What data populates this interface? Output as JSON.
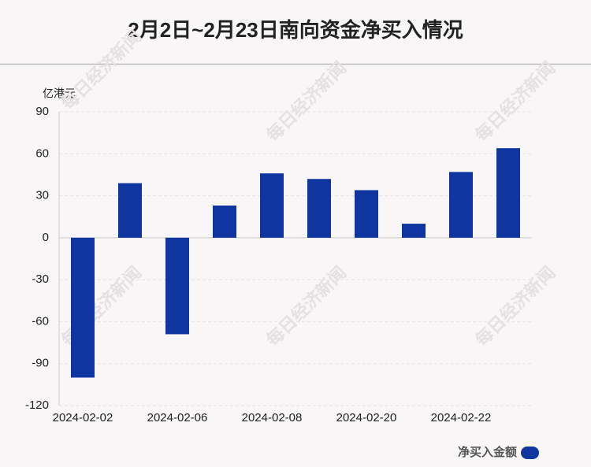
{
  "chart_data": {
    "type": "bar",
    "title": "2月2日~2月23日南向资金净买入情况",
    "y_label": "亿港元",
    "categories": [
      "2024-02-02",
      null,
      "2024-02-06",
      null,
      "2024-02-08",
      null,
      "2024-02-20",
      null,
      "2024-02-22",
      null
    ],
    "series": [
      {
        "name": "净买入金额",
        "color": "#0e35a0",
        "values": [
          -100,
          39,
          -69,
          23,
          46,
          42,
          34,
          10,
          47,
          64
        ]
      }
    ],
    "ylim": [
      -120,
      90
    ],
    "yticks": [
      -120,
      -90,
      -60,
      -30,
      0,
      30,
      60,
      90
    ],
    "grid": true,
    "legend": "bottom-right",
    "watermark": "每日经济新闻"
  }
}
